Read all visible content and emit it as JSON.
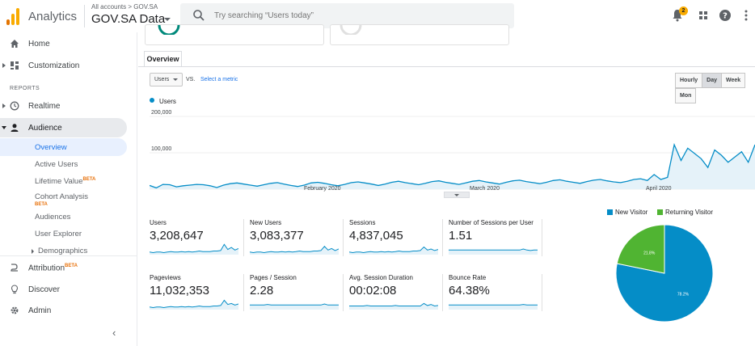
{
  "app": {
    "name": "Analytics",
    "account_crumb": "All accounts > GOV.SA",
    "account_name": "GOV.SA Data"
  },
  "search": {
    "placeholder": "Try searching “Users today”",
    "icon": "search-icon"
  },
  "topbar": {
    "notification_count": "2"
  },
  "sidebar": {
    "home": "Home",
    "customization": "Customization",
    "reports_heading": "REPORTS",
    "realtime": "Realtime",
    "audience": "Audience",
    "audience_items": {
      "overview": "Overview",
      "active_users": "Active Users",
      "lifetime_value": "Lifetime Value",
      "cohort_analysis": "Cohort Analysis",
      "audiences": "Audiences",
      "user_explorer": "User Explorer",
      "demographics": "Demographics"
    },
    "beta": "BETA",
    "attribution": "Attribution",
    "discover": "Discover",
    "admin": "Admin"
  },
  "tabs": {
    "overview": "Overview"
  },
  "controls": {
    "metric": "Users",
    "vs": "VS.",
    "select_metric": "Select a metric",
    "periods": [
      "Hourly",
      "Day",
      "Week",
      "Mon"
    ],
    "active_period": "Day"
  },
  "colors": {
    "accent": "#058dc7",
    "new_visitor": "#058dc7",
    "returning_visitor": "#50b432",
    "logo_orange": "#f9ab00",
    "logo_dark": "#e37400"
  },
  "chart_data": [
    {
      "type": "area",
      "series": [
        {
          "name": "Users",
          "values": [
            29000,
            22000,
            32000,
            31000,
            25000,
            28000,
            30000,
            32000,
            31000,
            28000,
            23000,
            30000,
            34000,
            36000,
            33000,
            30000,
            27000,
            31000,
            35000,
            37000,
            33000,
            29000,
            26000,
            30000,
            36000,
            38000,
            35000,
            31000,
            28000,
            32000,
            37000,
            39000,
            36000,
            33000,
            29000,
            33000,
            38000,
            41000,
            37000,
            34000,
            31000,
            35000,
            40000,
            42000,
            38000,
            35000,
            32000,
            36000,
            41000,
            43000,
            39000,
            36000,
            33000,
            38000,
            42000,
            44000,
            40000,
            37000,
            34000,
            38000,
            43000,
            45000,
            41000,
            38000,
            35000,
            40000,
            44000,
            46000,
            42000,
            39000,
            37000,
            41000,
            46000,
            48000,
            43000,
            60000,
            46000,
            52000,
            145000,
            100000,
            135000,
            120000,
            105000,
            80000,
            130000,
            115000,
            95000,
            110000,
            125000,
            95000,
            145000
          ]
        }
      ],
      "x_tick_labels": [
        "February 2020",
        "March 2020",
        "April 2020"
      ],
      "y_tick_labels": [
        "200,000",
        "100,000"
      ],
      "ylim": [
        0,
        230000
      ],
      "grid": true
    },
    {
      "type": "pie",
      "categories": [
        "New Visitor",
        "Returning Visitor"
      ],
      "values": [
        78.2,
        21.8
      ],
      "slice_labels": [
        "78.2%",
        "21.8%"
      ],
      "legend": "top"
    }
  ],
  "kpis": [
    {
      "label": "Users",
      "value": "3,208,647",
      "trend": [
        5,
        4,
        5,
        5,
        4,
        5,
        6,
        5,
        5,
        6,
        5,
        6,
        5,
        6,
        7,
        6,
        6,
        6,
        7,
        7,
        8,
        20,
        10,
        14,
        9,
        12
      ]
    },
    {
      "label": "New Users",
      "value": "3,083,377",
      "trend": [
        5,
        4,
        5,
        5,
        4,
        5,
        6,
        5,
        5,
        6,
        5,
        6,
        5,
        6,
        7,
        6,
        6,
        6,
        7,
        7,
        8,
        16,
        9,
        12,
        8,
        11
      ]
    },
    {
      "label": "Sessions",
      "value": "4,837,045",
      "trend": [
        5,
        4,
        5,
        5,
        4,
        5,
        6,
        5,
        5,
        6,
        5,
        6,
        5,
        6,
        7,
        6,
        6,
        6,
        7,
        7,
        8,
        15,
        9,
        11,
        8,
        10
      ]
    },
    {
      "label": "Number of Sessions per User",
      "value": "1.51",
      "trend": [
        9,
        9,
        9,
        9,
        9,
        9,
        9,
        9,
        9,
        9,
        9,
        9,
        9,
        9,
        9,
        9,
        9,
        9,
        9,
        9,
        9,
        11,
        9,
        8,
        9,
        9
      ]
    },
    {
      "label": "Pageviews",
      "value": "11,032,353",
      "trend": [
        5,
        4,
        5,
        5,
        4,
        5,
        6,
        5,
        5,
        6,
        5,
        6,
        5,
        6,
        7,
        6,
        6,
        6,
        7,
        7,
        8,
        18,
        10,
        12,
        9,
        11
      ]
    },
    {
      "label": "Pages / Session",
      "value": "2.28",
      "trend": [
        9,
        9,
        9,
        9,
        9,
        10,
        9,
        9,
        9,
        9,
        9,
        9,
        9,
        9,
        9,
        9,
        9,
        9,
        9,
        9,
        9,
        11,
        9,
        9,
        9,
        9
      ]
    },
    {
      "label": "Avg. Session Duration",
      "value": "00:02:08",
      "trend": [
        7,
        7,
        7,
        7,
        7,
        8,
        7,
        7,
        7,
        7,
        7,
        7,
        7,
        8,
        7,
        7,
        7,
        7,
        7,
        7,
        7,
        12,
        8,
        10,
        7,
        8
      ]
    },
    {
      "label": "Bounce Rate",
      "value": "64.38%",
      "trend": [
        9,
        9,
        9,
        9,
        9,
        9,
        9,
        9,
        9,
        9,
        9,
        9,
        9,
        9,
        9,
        9,
        9,
        9,
        9,
        9,
        9,
        10,
        9,
        9,
        9,
        9
      ]
    }
  ]
}
